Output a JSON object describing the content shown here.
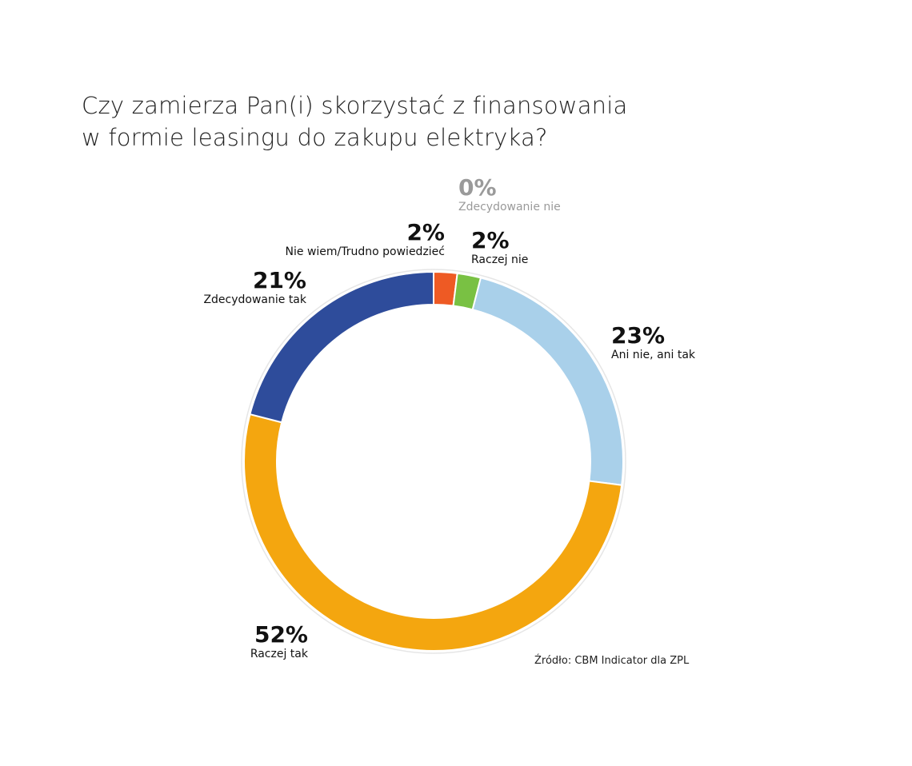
{
  "chart_data": {
    "type": "pie",
    "donut": true,
    "title": "Czy zamierza Pan(i) skorzystać z finansowania w formie leasingu do zakupu elektryka?",
    "title_lines": [
      "Czy zamierza Pan(i) skorzystać z finansowania",
      "w formie leasingu do zakupu elektryka?"
    ],
    "slices": [
      {
        "label": "Zdecydowanie nie",
        "value": 0,
        "pct_label": "0%",
        "color": "#9a9a9a"
      },
      {
        "label": "Nie wiem/Trudno powiedzieć",
        "value": 2,
        "pct_label": "2%",
        "color": "#ee5a24"
      },
      {
        "label": "Raczej nie",
        "value": 2,
        "pct_label": "2%",
        "color": "#79c143"
      },
      {
        "label": "Ani nie, ani tak",
        "value": 23,
        "pct_label": "23%",
        "color": "#a9d0ea"
      },
      {
        "label": "Raczej tak",
        "value": 52,
        "pct_label": "52%",
        "color": "#f4a60f"
      },
      {
        "label": "Zdecydowanie tak",
        "value": 21,
        "pct_label": "21%",
        "color": "#2e4c9b"
      }
    ],
    "source": "Źródło: CBM Indicator dla ZPL"
  }
}
